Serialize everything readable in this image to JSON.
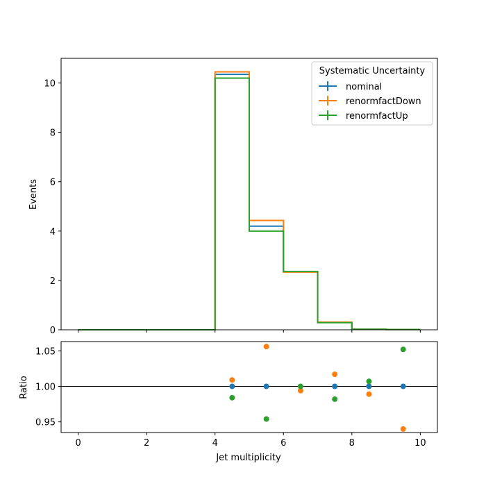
{
  "chart_data": [
    {
      "type": "line",
      "drawstyle": "steps",
      "ylabel": "Events",
      "xlim": [
        -0.5,
        10.5
      ],
      "ylim": [
        0,
        11
      ],
      "x_ticks": [
        0,
        2,
        4,
        6,
        8,
        10
      ],
      "y_ticks": [
        0,
        2,
        4,
        6,
        8,
        10
      ],
      "x_edges": [
        0,
        1,
        2,
        3,
        4,
        5,
        6,
        7,
        8,
        9,
        10
      ],
      "series": [
        {
          "name": "nominal",
          "color": "#1f77b4",
          "values": [
            0,
            0,
            0,
            0,
            10.35,
            4.2,
            2.35,
            0.3,
            0.02,
            0.01
          ]
        },
        {
          "name": "renormfactDown",
          "color": "#ff7f0e",
          "values": [
            0,
            0,
            0,
            0,
            10.45,
            4.43,
            2.34,
            0.31,
            0.02,
            0.01
          ]
        },
        {
          "name": "renormfactUp",
          "color": "#2ca02c",
          "values": [
            0,
            0,
            0,
            0,
            10.2,
            4.0,
            2.36,
            0.29,
            0.02,
            0.01
          ]
        }
      ],
      "legend": {
        "title": "Systematic Uncertainty",
        "position": "top-right"
      },
      "grid": false
    },
    {
      "type": "scatter",
      "xlabel": "Jet multiplicity",
      "ylabel": "Ratio",
      "xlim": [
        -0.5,
        10.5
      ],
      "ylim": [
        0.935,
        1.063
      ],
      "x_ticks": [
        0,
        2,
        4,
        6,
        8,
        10
      ],
      "y_ticks": [
        0.95,
        1.0,
        1.05
      ],
      "y_tick_labels": [
        "0.95",
        "1.00",
        "1.05"
      ],
      "reference_line": 1.0,
      "x": [
        4.5,
        5.5,
        6.5,
        7.5,
        8.5,
        9.5
      ],
      "series": [
        {
          "name": "nominal",
          "color": "#1f77b4",
          "values": [
            1.0,
            1.0,
            null,
            1.0,
            1.0,
            1.0
          ]
        },
        {
          "name": "renormfactDown",
          "color": "#ff7f0e",
          "values": [
            1.009,
            1.056,
            0.994,
            1.017,
            0.989,
            0.94
          ]
        },
        {
          "name": "renormfactUp",
          "color": "#2ca02c",
          "values": [
            0.984,
            0.954,
            1.0,
            0.982,
            1.007,
            1.052
          ]
        }
      ],
      "grid": false
    }
  ]
}
